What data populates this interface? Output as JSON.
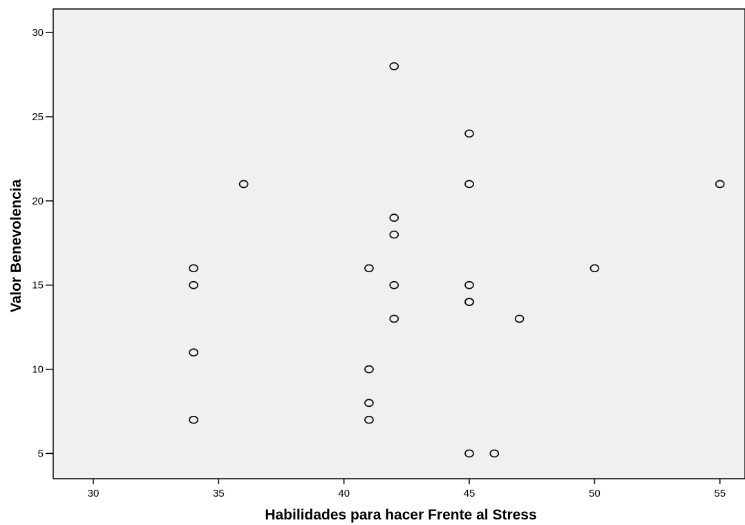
{
  "chart_data": {
    "type": "scatter",
    "title": "",
    "xlabel": "Habilidades para hacer Frente al Stress",
    "ylabel": "Valor Benevolencia",
    "xlim": [
      28.4,
      56.0
    ],
    "ylim": [
      3.5,
      31.4
    ],
    "xticks": [
      30,
      35,
      40,
      45,
      50,
      55
    ],
    "yticks": [
      5,
      10,
      15,
      20,
      25,
      30
    ],
    "grid": false,
    "background_color": "#f0f0f0",
    "marker": "open-circle",
    "points": [
      {
        "x": 42,
        "y": 28
      },
      {
        "x": 45,
        "y": 24
      },
      {
        "x": 36,
        "y": 21
      },
      {
        "x": 45,
        "y": 21
      },
      {
        "x": 55,
        "y": 21
      },
      {
        "x": 42,
        "y": 19
      },
      {
        "x": 42,
        "y": 18
      },
      {
        "x": 34,
        "y": 16
      },
      {
        "x": 41,
        "y": 16
      },
      {
        "x": 50,
        "y": 16
      },
      {
        "x": 34,
        "y": 15
      },
      {
        "x": 42,
        "y": 15
      },
      {
        "x": 45,
        "y": 15
      },
      {
        "x": 45,
        "y": 14
      },
      {
        "x": 45,
        "y": 14
      },
      {
        "x": 42,
        "y": 13
      },
      {
        "x": 47,
        "y": 13
      },
      {
        "x": 34,
        "y": 11
      },
      {
        "x": 41,
        "y": 10
      },
      {
        "x": 41,
        "y": 8
      },
      {
        "x": 34,
        "y": 7
      },
      {
        "x": 41,
        "y": 7
      },
      {
        "x": 45,
        "y": 5
      },
      {
        "x": 46,
        "y": 5
      }
    ]
  }
}
